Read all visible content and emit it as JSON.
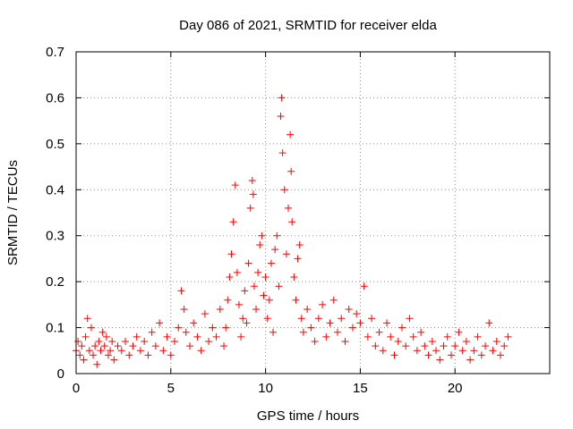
{
  "chart_data": {
    "type": "scatter",
    "title": "Day 086 of 2021, SRMTID for receiver elda",
    "xlabel": "GPS time / hours",
    "ylabel": "SRMTID / TECUs",
    "xlim": [
      0,
      25
    ],
    "ylim": [
      0,
      0.7
    ],
    "xticks": [
      0,
      5,
      10,
      15,
      20
    ],
    "xtick_labels": [
      "0",
      "5",
      "10",
      "15",
      "20"
    ],
    "yticks": [
      0,
      0.1,
      0.2,
      0.3,
      0.4,
      0.5,
      0.6,
      0.7
    ],
    "ytick_labels": [
      "0",
      "0.1",
      "0.2",
      "0.3",
      "0.4",
      "0.5",
      "0.6",
      "0.7"
    ],
    "grid": true,
    "marker": "+",
    "series": [
      {
        "name": "SRMTID",
        "color": "#ff0000",
        "points": [
          [
            0.0,
            0.05
          ],
          [
            0.1,
            0.07
          ],
          [
            0.2,
            0.04
          ],
          [
            0.3,
            0.06
          ],
          [
            0.4,
            0.03
          ],
          [
            0.5,
            0.08
          ],
          [
            0.6,
            0.12
          ],
          [
            0.7,
            0.05
          ],
          [
            0.8,
            0.1
          ],
          [
            0.9,
            0.04
          ],
          [
            1.0,
            0.06
          ],
          [
            1.1,
            0.02
          ],
          [
            1.2,
            0.07
          ],
          [
            1.3,
            0.05
          ],
          [
            1.4,
            0.09
          ],
          [
            1.5,
            0.06
          ],
          [
            1.6,
            0.08
          ],
          [
            1.7,
            0.04
          ],
          [
            1.8,
            0.05
          ],
          [
            1.9,
            0.07
          ],
          [
            2.0,
            0.03
          ],
          [
            2.2,
            0.06
          ],
          [
            2.4,
            0.05
          ],
          [
            2.6,
            0.07
          ],
          [
            2.8,
            0.04
          ],
          [
            3.0,
            0.06
          ],
          [
            3.2,
            0.08
          ],
          [
            3.4,
            0.05
          ],
          [
            3.6,
            0.07
          ],
          [
            3.8,
            0.04
          ],
          [
            4.0,
            0.09
          ],
          [
            4.2,
            0.06
          ],
          [
            4.4,
            0.11
          ],
          [
            4.6,
            0.05
          ],
          [
            4.8,
            0.08
          ],
          [
            5.0,
            0.04
          ],
          [
            5.2,
            0.07
          ],
          [
            5.4,
            0.1
          ],
          [
            5.55,
            0.18
          ],
          [
            5.7,
            0.14
          ],
          [
            5.8,
            0.09
          ],
          [
            6.0,
            0.06
          ],
          [
            6.2,
            0.11
          ],
          [
            6.4,
            0.08
          ],
          [
            6.6,
            0.05
          ],
          [
            6.8,
            0.13
          ],
          [
            7.0,
            0.07
          ],
          [
            7.2,
            0.1
          ],
          [
            7.4,
            0.08
          ],
          [
            7.6,
            0.14
          ],
          [
            7.8,
            0.06
          ],
          [
            7.9,
            0.1
          ],
          [
            8.0,
            0.16
          ],
          [
            8.1,
            0.21
          ],
          [
            8.2,
            0.26
          ],
          [
            8.3,
            0.33
          ],
          [
            8.4,
            0.41
          ],
          [
            8.5,
            0.22
          ],
          [
            8.6,
            0.15
          ],
          [
            8.7,
            0.08
          ],
          [
            8.8,
            0.12
          ],
          [
            8.9,
            0.18
          ],
          [
            9.0,
            0.11
          ],
          [
            9.1,
            0.24
          ],
          [
            9.2,
            0.36
          ],
          [
            9.3,
            0.42
          ],
          [
            9.35,
            0.39
          ],
          [
            9.4,
            0.19
          ],
          [
            9.5,
            0.14
          ],
          [
            9.6,
            0.22
          ],
          [
            9.7,
            0.28
          ],
          [
            9.8,
            0.3
          ],
          [
            9.9,
            0.17
          ],
          [
            10.0,
            0.21
          ],
          [
            10.1,
            0.12
          ],
          [
            10.2,
            0.16
          ],
          [
            10.3,
            0.24
          ],
          [
            10.4,
            0.09
          ],
          [
            10.5,
            0.27
          ],
          [
            10.6,
            0.3
          ],
          [
            10.7,
            0.19
          ],
          [
            10.8,
            0.56
          ],
          [
            10.85,
            0.6
          ],
          [
            10.9,
            0.48
          ],
          [
            11.0,
            0.4
          ],
          [
            11.1,
            0.26
          ],
          [
            11.2,
            0.36
          ],
          [
            11.3,
            0.52
          ],
          [
            11.35,
            0.44
          ],
          [
            11.4,
            0.33
          ],
          [
            11.5,
            0.21
          ],
          [
            11.6,
            0.16
          ],
          [
            11.7,
            0.25
          ],
          [
            11.8,
            0.28
          ],
          [
            11.9,
            0.12
          ],
          [
            12.0,
            0.09
          ],
          [
            12.2,
            0.14
          ],
          [
            12.4,
            0.1
          ],
          [
            12.6,
            0.07
          ],
          [
            12.8,
            0.12
          ],
          [
            13.0,
            0.15
          ],
          [
            13.2,
            0.08
          ],
          [
            13.4,
            0.11
          ],
          [
            13.6,
            0.16
          ],
          [
            13.8,
            0.09
          ],
          [
            14.0,
            0.12
          ],
          [
            14.2,
            0.07
          ],
          [
            14.4,
            0.14
          ],
          [
            14.6,
            0.1
          ],
          [
            14.8,
            0.13
          ],
          [
            15.0,
            0.11
          ],
          [
            15.2,
            0.19
          ],
          [
            15.4,
            0.08
          ],
          [
            15.6,
            0.12
          ],
          [
            15.8,
            0.06
          ],
          [
            16.0,
            0.09
          ],
          [
            16.2,
            0.05
          ],
          [
            16.4,
            0.11
          ],
          [
            16.6,
            0.08
          ],
          [
            16.8,
            0.04
          ],
          [
            17.0,
            0.07
          ],
          [
            17.2,
            0.1
          ],
          [
            17.4,
            0.06
          ],
          [
            17.6,
            0.12
          ],
          [
            17.8,
            0.08
          ],
          [
            18.0,
            0.05
          ],
          [
            18.2,
            0.09
          ],
          [
            18.4,
            0.06
          ],
          [
            18.6,
            0.04
          ],
          [
            18.8,
            0.07
          ],
          [
            19.0,
            0.05
          ],
          [
            19.2,
            0.03
          ],
          [
            19.4,
            0.06
          ],
          [
            19.6,
            0.08
          ],
          [
            19.8,
            0.04
          ],
          [
            20.0,
            0.06
          ],
          [
            20.2,
            0.09
          ],
          [
            20.4,
            0.05
          ],
          [
            20.6,
            0.07
          ],
          [
            20.8,
            0.03
          ],
          [
            21.0,
            0.05
          ],
          [
            21.2,
            0.08
          ],
          [
            21.4,
            0.04
          ],
          [
            21.6,
            0.06
          ],
          [
            21.8,
            0.11
          ],
          [
            22.0,
            0.05
          ],
          [
            22.2,
            0.07
          ],
          [
            22.4,
            0.04
          ],
          [
            22.6,
            0.06
          ],
          [
            22.8,
            0.08
          ]
        ]
      }
    ]
  }
}
